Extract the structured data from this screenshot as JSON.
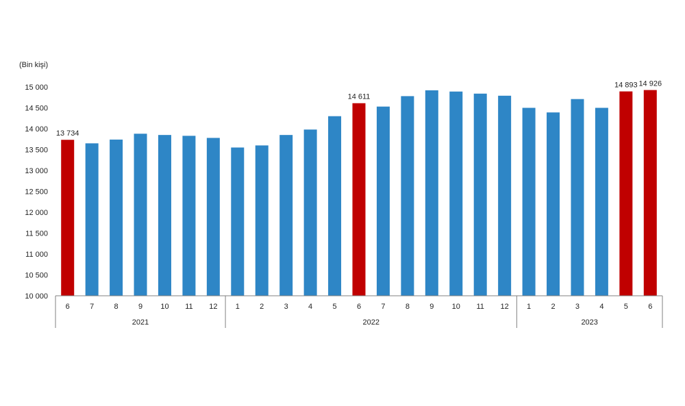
{
  "chart_data": {
    "type": "bar",
    "unit_label": "(Bin kişi)",
    "title": "",
    "xlabel": "",
    "ylabel": "",
    "ylim": [
      10000,
      15000
    ],
    "yticks": [
      10000,
      10500,
      11000,
      11500,
      12000,
      12500,
      13000,
      13500,
      14000,
      14500,
      15000
    ],
    "ytick_labels": [
      "10 000",
      "10 500",
      "11 000",
      "11 500",
      "12 000",
      "12 500",
      "13 000",
      "13 500",
      "14 000",
      "14 500",
      "15 000"
    ],
    "categories": [
      "6",
      "7",
      "8",
      "9",
      "10",
      "11",
      "12",
      "1",
      "2",
      "3",
      "4",
      "5",
      "6",
      "7",
      "8",
      "9",
      "10",
      "11",
      "12",
      "1",
      "2",
      "3",
      "4",
      "5",
      "6"
    ],
    "values": [
      13734,
      13650,
      13740,
      13880,
      13850,
      13830,
      13780,
      13550,
      13600,
      13850,
      13980,
      14300,
      14611,
      14530,
      14780,
      14920,
      14890,
      14840,
      14790,
      14500,
      14390,
      14710,
      14500,
      14893,
      14926
    ],
    "highlight": [
      true,
      false,
      false,
      false,
      false,
      false,
      false,
      false,
      false,
      false,
      false,
      false,
      true,
      false,
      false,
      false,
      false,
      false,
      false,
      false,
      false,
      false,
      false,
      true,
      true
    ],
    "data_labels": [
      "13 734",
      "",
      "",
      "",
      "",
      "",
      "",
      "",
      "",
      "",
      "",
      "",
      "14 611",
      "",
      "",
      "",
      "",
      "",
      "",
      "",
      "",
      "",
      "",
      "14 893",
      "14 926"
    ],
    "groups": [
      {
        "label": "2021",
        "start": 0,
        "end": 6
      },
      {
        "label": "2022",
        "start": 7,
        "end": 18
      },
      {
        "label": "2023",
        "start": 19,
        "end": 24
      }
    ],
    "colors": {
      "normal": "#2e86c6",
      "highlight": "#c00000",
      "axis": "#808080"
    },
    "grid": false,
    "legend": "none"
  }
}
